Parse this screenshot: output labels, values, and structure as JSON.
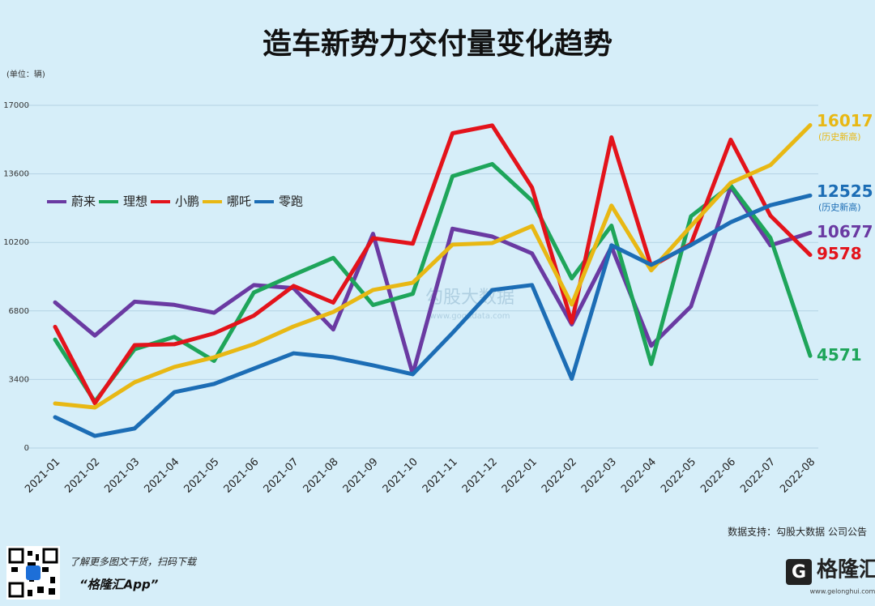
{
  "chart_data": {
    "type": "line",
    "title": "造车新势力交付量变化趋势",
    "y_unit": "(单位：辆)",
    "categories": [
      "2021-01",
      "2021-02",
      "2021-03",
      "2021-04",
      "2021-05",
      "2021-06",
      "2021-07",
      "2021-08",
      "2021-09",
      "2021-10",
      "2021-11",
      "2021-12",
      "2022-01",
      "2022-02",
      "2022-03",
      "2022-04",
      "2022-05",
      "2022-06",
      "2022-07",
      "2022-08"
    ],
    "series": [
      {
        "name": "蔚来",
        "color": "#6a3aa2",
        "values": [
          7225,
          5578,
          7257,
          7102,
          6711,
          8083,
          7931,
          5880,
          10628,
          3667,
          10878,
          10489,
          9652,
          6131,
          9985,
          5074,
          7024,
          12961,
          10052,
          10677
        ]
      },
      {
        "name": "理想",
        "color": "#1ea55a",
        "values": [
          5379,
          2300,
          4900,
          5514,
          4323,
          7713,
          8589,
          9433,
          7094,
          7649,
          13485,
          14087,
          12268,
          8414,
          11034,
          4167,
          11496,
          13024,
          10422,
          4571
        ]
      },
      {
        "name": "小鹏",
        "color": "#e3131b",
        "values": [
          6015,
          2223,
          5102,
          5147,
          5686,
          6565,
          8040,
          7214,
          10412,
          10138,
          15613,
          16000,
          12922,
          6225,
          15414,
          9002,
          10125,
          15295,
          11524,
          9578
        ]
      },
      {
        "name": "哪吒",
        "color": "#e8b814",
        "values": [
          2210,
          2010,
          3260,
          4020,
          4500,
          5150,
          6030,
          6750,
          7840,
          8200,
          10090,
          10170,
          11009,
          7117,
          12026,
          8813,
          11009,
          13157,
          14037,
          16017
        ],
        "value_note": "(历史新高)"
      },
      {
        "name": "零跑",
        "color": "#1c6db5",
        "values": [
          1530,
          600,
          970,
          2770,
          3180,
          3940,
          4700,
          4500,
          4100,
          3660,
          5710,
          7840,
          8085,
          3435,
          10059,
          9087,
          10069,
          11200,
          12044,
          12525
        ],
        "value_note": "(历史新高)"
      }
    ],
    "ylim": [
      0,
      17000
    ],
    "yticks": [
      0,
      3400,
      6800,
      10200,
      13600,
      17000
    ],
    "grid": true,
    "legend": "upper left"
  },
  "watermark": {
    "name": "勾股大数据",
    "url": "www.gogudata.com"
  },
  "source": "数据支持：勾股大数据  公司公告",
  "footer": {
    "promo": "了解更多图文干货，扫码下载",
    "app": "“格隆汇App”",
    "logo": "格隆汇",
    "logo_url": "www.gelonghui.com"
  }
}
